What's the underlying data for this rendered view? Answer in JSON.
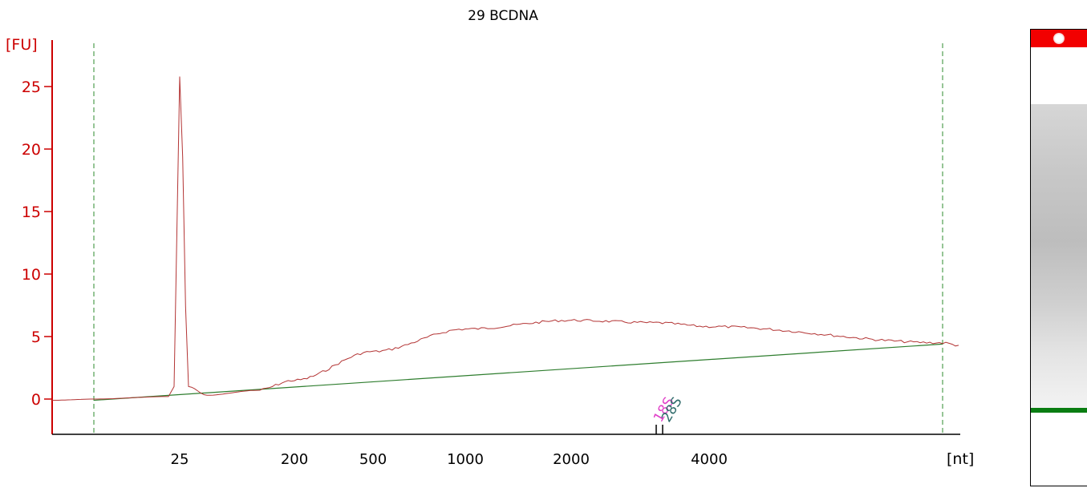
{
  "chart_data": {
    "type": "line",
    "title": "29 BCDNA",
    "ylabel": "[FU]",
    "xlabel": "[nt]",
    "ylim": [
      -2.7,
      28.2
    ],
    "y_ticks": [
      0,
      5,
      10,
      15,
      20,
      25
    ],
    "x_tick_labels": [
      "25",
      "200",
      "500",
      "1000",
      "2000",
      "4000"
    ],
    "x_position_order": [
      "start_marker",
      "25",
      "200",
      "500",
      "1000",
      "2000",
      "18S",
      "28S",
      "4000",
      "end_marker"
    ],
    "peak_labels": [
      {
        "label": "18S",
        "color": "#e040c8"
      },
      {
        "label": "28S",
        "color": "#2f6b6b"
      }
    ],
    "series": [
      {
        "name": "",
        "color": "#b33434",
        "points": [
          [
            "left",
            -0.1
          ],
          [
            "start_marker",
            0
          ],
          [
            "pre25",
            0.2
          ],
          [
            "25_rise",
            1
          ],
          [
            "25_peak",
            25.8
          ],
          [
            "25_fall",
            1
          ],
          [
            "25_after",
            0.3
          ],
          [
            "200_before",
            0.7
          ],
          [
            "200",
            1.5
          ],
          [
            "500",
            3.8
          ],
          [
            "1000",
            5.6
          ],
          [
            "2000",
            6.3
          ],
          [
            "18S",
            6.1
          ],
          [
            "4000",
            5.8
          ],
          [
            "end_marker",
            4.5
          ],
          [
            "right",
            4.3
          ]
        ]
      },
      {
        "name": "",
        "color": "#2e7d2e",
        "points": [
          [
            "start_marker",
            -0.1
          ],
          [
            "end_marker",
            4.4
          ]
        ]
      }
    ],
    "colors": {
      "axis": "#cc0000",
      "axis_text": "#cc0000",
      "trace": "#b33434",
      "baseline": "#2e7d2e",
      "marker_lines": "#2e8b2e",
      "gel_marker": "#f20000",
      "gel_band": "#0a7d12"
    },
    "grid": false
  }
}
